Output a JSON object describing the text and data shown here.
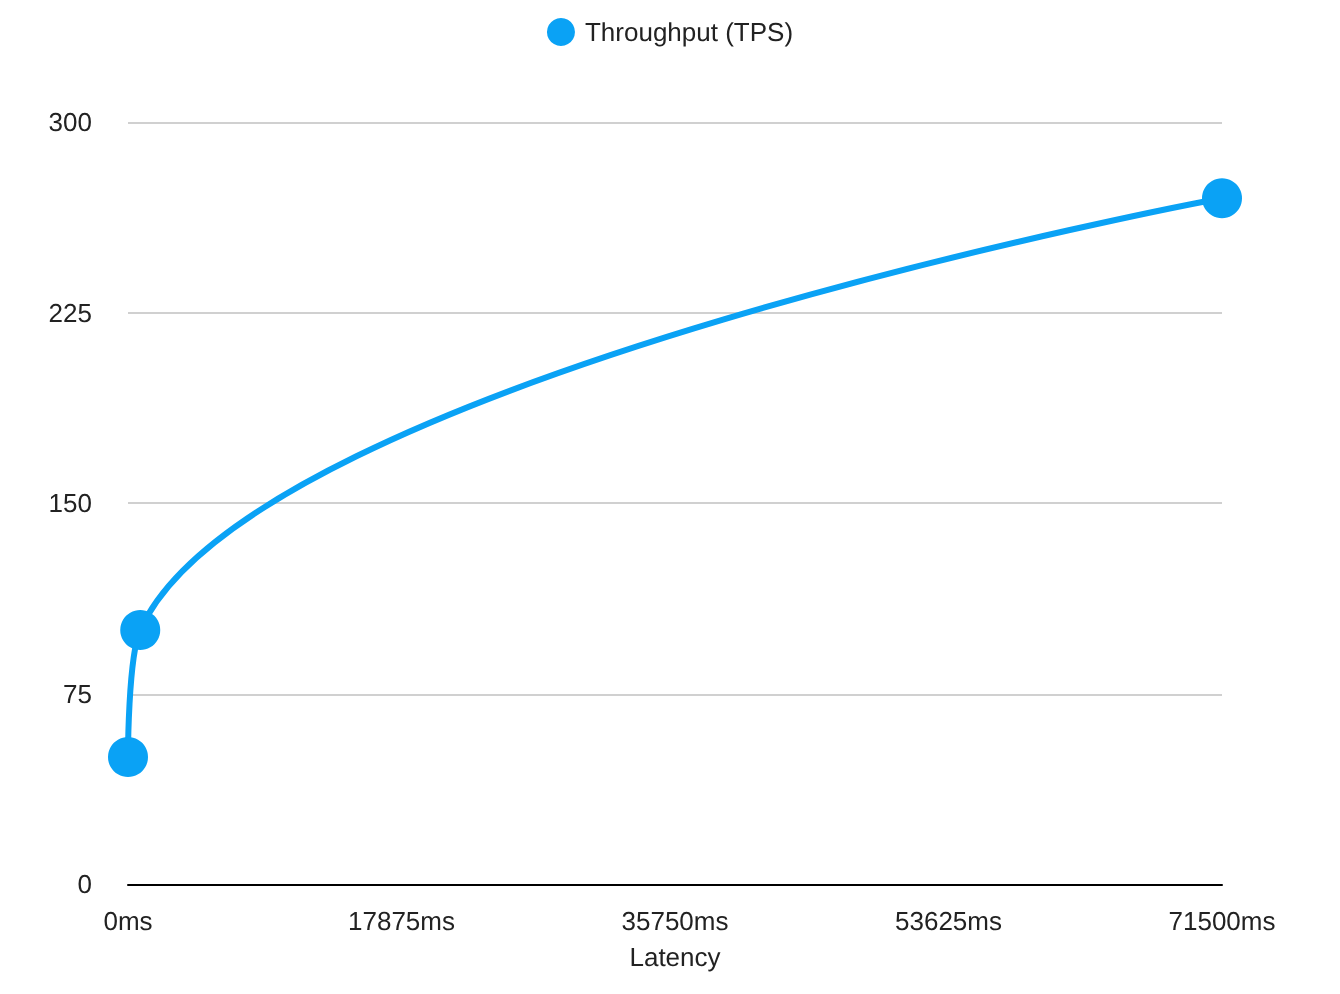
{
  "chart_data": {
    "type": "line",
    "xlabel": "Latency",
    "x": [
      0,
      800,
      71500
    ],
    "series": [
      {
        "name": "Throughput (TPS)",
        "color": "#0aa2f5",
        "values": [
          50,
          100,
          270
        ]
      }
    ],
    "xlim": [
      0,
      71500
    ],
    "xticks": [
      {
        "value": 0,
        "label": "0ms"
      },
      {
        "value": 17875,
        "label": "17875ms"
      },
      {
        "value": 35750,
        "label": "35750ms"
      },
      {
        "value": 53625,
        "label": "53625ms"
      },
      {
        "value": 71500,
        "label": "71500ms"
      }
    ],
    "ylim": [
      0,
      300
    ],
    "yticks": [
      0,
      75,
      150,
      225,
      300
    ],
    "grid": "y",
    "legend": "top",
    "marker": "circle",
    "line_style": "solid"
  }
}
